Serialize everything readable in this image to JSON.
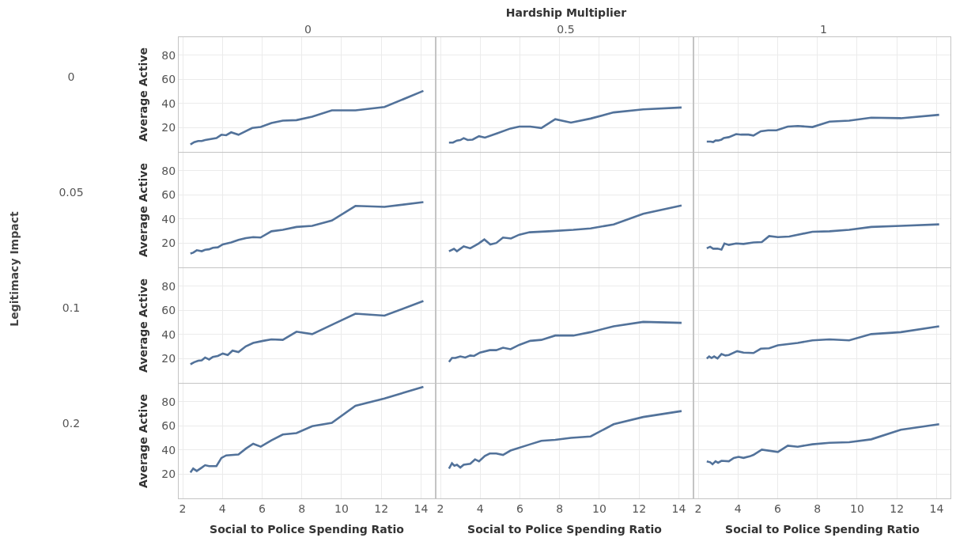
{
  "chart_data": [
    {
      "type": "other",
      "title": "Hardship Multiplier",
      "annotations": [
        "0",
        "0.5",
        "1"
      ]
    },
    {
      "type": "other",
      "title": "Legitimacy Impact",
      "annotations": [
        "0",
        "0.05",
        "0.1",
        "0.2"
      ]
    },
    {
      "type": "line",
      "ylabel": "Average Active",
      "xlim": [
        1.8,
        14.7
      ],
      "xticks": [
        2,
        4,
        6,
        8,
        10,
        12,
        14
      ],
      "ylim": [
        0,
        95
      ],
      "yticks": [
        20,
        40,
        60,
        80
      ],
      "grid": true,
      "tick_labels": "y",
      "series": [
        {
          "color": "#52729a",
          "x": [
            2.39,
            2.58,
            2.78,
            2.96,
            3.13,
            3.7,
            3.95,
            4.19,
            4.44,
            4.81,
            5.5,
            5.93,
            6.47,
            7.04,
            7.73,
            8.52,
            9.51,
            10.7,
            12.16,
            14.12
          ],
          "values": [
            6.1,
            8.1,
            9.0,
            9.0,
            9.8,
            11.4,
            14.2,
            13.8,
            16.2,
            14.2,
            19.8,
            20.6,
            23.9,
            25.9,
            26.3,
            29.1,
            34.4,
            34.4,
            37.2,
            50.5
          ]
        }
      ]
    },
    {
      "type": "line",
      "xlim": [
        1.8,
        14.7
      ],
      "xticks": [
        2,
        4,
        6,
        8,
        10,
        12,
        14
      ],
      "ylim": [
        0,
        95
      ],
      "yticks": [
        20,
        40,
        60,
        80
      ],
      "grid": true,
      "tick_labels": false,
      "series": [
        {
          "color": "#52729a",
          "x": [
            2.43,
            2.63,
            2.83,
            3.0,
            3.17,
            3.37,
            3.62,
            3.94,
            4.24,
            4.86,
            5.53,
            5.97,
            6.52,
            7.08,
            7.78,
            8.57,
            9.56,
            10.72,
            12.21,
            14.14
          ],
          "values": [
            7.7,
            7.7,
            9.4,
            9.8,
            11.4,
            9.8,
            10.2,
            13.0,
            11.8,
            15.4,
            19.4,
            21.0,
            21.0,
            19.8,
            27.1,
            24.3,
            27.6,
            32.7,
            35.2,
            36.8
          ]
        }
      ]
    },
    {
      "type": "line",
      "xlim": [
        1.8,
        14.7
      ],
      "xticks": [
        2,
        4,
        6,
        8,
        10,
        12,
        14
      ],
      "ylim": [
        0,
        95
      ],
      "yticks": [
        20,
        40,
        60,
        80
      ],
      "grid": true,
      "tick_labels": false,
      "series": [
        {
          "color": "#52729a",
          "x": [
            2.43,
            2.62,
            2.75,
            2.87,
            3.0,
            3.17,
            3.29,
            3.54,
            3.91,
            4.16,
            4.53,
            4.78,
            5.15,
            5.52,
            5.94,
            6.51,
            7.01,
            7.75,
            8.61,
            9.6,
            10.71,
            12.2,
            14.13
          ],
          "values": [
            8.5,
            8.5,
            8.1,
            9.4,
            9.4,
            10.2,
            11.5,
            12.2,
            14.7,
            14.3,
            14.3,
            13.5,
            17.1,
            17.9,
            17.9,
            21.0,
            21.5,
            20.6,
            25.1,
            25.9,
            28.3,
            27.9,
            30.7
          ]
        }
      ]
    },
    {
      "type": "line",
      "ylabel": "Average Active",
      "xlim": [
        1.8,
        14.7
      ],
      "xticks": [
        2,
        4,
        6,
        8,
        10,
        12,
        14
      ],
      "ylim": [
        0,
        95
      ],
      "yticks": [
        20,
        40,
        60,
        80
      ],
      "grid": true,
      "tick_labels": "y",
      "series": [
        {
          "color": "#52729a",
          "x": [
            2.39,
            2.53,
            2.71,
            2.96,
            3.13,
            3.33,
            3.52,
            3.77,
            4.02,
            4.44,
            4.81,
            5.18,
            5.55,
            5.92,
            6.47,
            7.04,
            7.73,
            8.52,
            9.51,
            10.7,
            12.16,
            14.12
          ],
          "values": [
            11.4,
            12.2,
            14.2,
            13.4,
            14.6,
            15.0,
            16.2,
            16.6,
            19.0,
            20.6,
            22.7,
            24.3,
            25.1,
            24.7,
            29.9,
            31.1,
            33.5,
            34.4,
            38.8,
            50.9,
            50.1,
            54.1
          ]
        }
      ]
    },
    {
      "type": "line",
      "xlim": [
        1.8,
        14.7
      ],
      "xticks": [
        2,
        4,
        6,
        8,
        10,
        12,
        14
      ],
      "ylim": [
        0,
        95
      ],
      "yticks": [
        20,
        40,
        60,
        80
      ],
      "grid": true,
      "tick_labels": false,
      "series": [
        {
          "color": "#52729a",
          "x": [
            2.43,
            2.68,
            2.83,
            3.17,
            3.5,
            3.92,
            4.21,
            4.51,
            4.81,
            5.15,
            5.55,
            5.97,
            6.49,
            7.46,
            8.69,
            9.56,
            10.72,
            12.21,
            14.14
          ],
          "values": [
            13.4,
            15.4,
            13.4,
            17.4,
            15.8,
            19.8,
            23.1,
            19.0,
            20.2,
            24.7,
            23.9,
            27.1,
            29.1,
            29.9,
            31.1,
            32.3,
            35.6,
            44.4,
            51.3
          ]
        }
      ]
    },
    {
      "type": "line",
      "xlim": [
        1.8,
        14.7
      ],
      "xticks": [
        2,
        4,
        6,
        8,
        10,
        12,
        14
      ],
      "ylim": [
        0,
        95
      ],
      "yticks": [
        20,
        40,
        60,
        80
      ],
      "grid": true,
      "tick_labels": false,
      "series": [
        {
          "color": "#52729a",
          "x": [
            2.43,
            2.6,
            2.75,
            2.97,
            3.17,
            3.32,
            3.54,
            3.91,
            4.28,
            4.78,
            5.2,
            5.57,
            6.01,
            6.58,
            7.75,
            8.61,
            9.6,
            10.71,
            12.2,
            14.13
          ],
          "values": [
            15.8,
            17.1,
            15.5,
            15.5,
            14.7,
            19.8,
            18.6,
            19.8,
            19.4,
            20.6,
            21.0,
            25.9,
            25.1,
            25.5,
            29.5,
            29.9,
            31.1,
            33.5,
            34.4,
            35.6
          ]
        }
      ]
    },
    {
      "type": "line",
      "ylabel": "Average Active",
      "xlim": [
        1.8,
        14.7
      ],
      "xticks": [
        2,
        4,
        6,
        8,
        10,
        12,
        14
      ],
      "ylim": [
        0,
        95
      ],
      "yticks": [
        20,
        40,
        60,
        80
      ],
      "grid": true,
      "tick_labels": "y",
      "series": [
        {
          "color": "#52729a",
          "x": [
            2.39,
            2.58,
            2.78,
            2.96,
            3.13,
            3.33,
            3.52,
            3.77,
            4.02,
            4.27,
            4.51,
            4.81,
            5.18,
            5.55,
            6.05,
            6.47,
            7.04,
            7.73,
            8.52,
            9.51,
            10.7,
            12.16,
            14.12
          ],
          "values": [
            15.4,
            17.1,
            18.3,
            18.7,
            21.0,
            19.4,
            21.5,
            22.3,
            24.3,
            23.1,
            26.7,
            25.5,
            30.3,
            33.1,
            34.8,
            36.0,
            35.6,
            42.4,
            40.4,
            48.1,
            57.3,
            55.7,
            67.8
          ]
        }
      ]
    },
    {
      "type": "line",
      "xlim": [
        1.8,
        14.7
      ],
      "xticks": [
        2,
        4,
        6,
        8,
        10,
        12,
        14
      ],
      "ylim": [
        0,
        95
      ],
      "yticks": [
        20,
        40,
        60,
        80
      ],
      "grid": true,
      "tick_labels": false,
      "series": [
        {
          "color": "#52729a",
          "x": [
            2.43,
            2.58,
            2.75,
            3.0,
            3.25,
            3.5,
            3.69,
            3.99,
            4.48,
            4.81,
            5.15,
            5.53,
            5.97,
            6.52,
            7.08,
            7.78,
            8.69,
            9.56,
            10.72,
            12.21,
            14.14
          ],
          "values": [
            17.4,
            20.6,
            20.6,
            21.9,
            21.0,
            22.7,
            22.3,
            25.1,
            27.1,
            27.1,
            29.1,
            27.9,
            31.5,
            34.8,
            35.6,
            39.2,
            39.2,
            42.0,
            46.9,
            50.5,
            49.7
          ]
        }
      ]
    },
    {
      "type": "line",
      "xlim": [
        1.8,
        14.7
      ],
      "xticks": [
        2,
        4,
        6,
        8,
        10,
        12,
        14
      ],
      "ylim": [
        0,
        95
      ],
      "yticks": [
        20,
        40,
        60,
        80
      ],
      "grid": true,
      "tick_labels": false,
      "series": [
        {
          "color": "#52729a",
          "x": [
            2.43,
            2.55,
            2.67,
            2.8,
            2.97,
            3.17,
            3.37,
            3.54,
            3.96,
            4.28,
            4.78,
            5.15,
            5.57,
            6.01,
            7.01,
            7.75,
            8.61,
            9.6,
            10.71,
            12.2,
            14.13
          ],
          "values": [
            20.2,
            21.9,
            20.6,
            21.9,
            20.2,
            23.9,
            22.7,
            23.1,
            26.3,
            25.1,
            24.7,
            28.3,
            28.7,
            31.1,
            33.1,
            35.2,
            36.0,
            35.2,
            40.4,
            42.0,
            46.9
          ]
        }
      ]
    },
    {
      "type": "line",
      "ylabel": "Average Active",
      "xlabel": "Social to Police Spending Ratio",
      "xlim": [
        1.8,
        14.7
      ],
      "xticks": [
        2,
        4,
        6,
        8,
        10,
        12,
        14
      ],
      "ylim": [
        0,
        95
      ],
      "yticks": [
        20,
        40,
        60,
        80
      ],
      "grid": true,
      "series": [
        {
          "color": "#52729a",
          "x": [
            2.39,
            2.53,
            2.71,
            2.96,
            3.13,
            3.33,
            3.7,
            3.95,
            4.19,
            4.81,
            5.18,
            5.55,
            5.93,
            6.47,
            7.04,
            7.73,
            8.52,
            9.51,
            10.7,
            12.16,
            14.12
          ],
          "values": [
            21.5,
            24.7,
            22.7,
            25.5,
            27.5,
            26.7,
            26.7,
            33.5,
            35.6,
            36.4,
            41.2,
            45.2,
            42.8,
            48.1,
            52.9,
            54.1,
            59.8,
            62.6,
            76.7,
            82.7,
            92.4
          ]
        }
      ]
    },
    {
      "type": "line",
      "xlabel": "Social to Police Spending Ratio",
      "xlim": [
        1.8,
        14.7
      ],
      "xticks": [
        2,
        4,
        6,
        8,
        10,
        12,
        14
      ],
      "ylim": [
        0,
        95
      ],
      "yticks": [
        20,
        40,
        60,
        80
      ],
      "grid": true,
      "tick_labels": "x",
      "series": [
        {
          "color": "#52729a",
          "x": [
            2.43,
            2.58,
            2.7,
            2.83,
            3.0,
            3.17,
            3.5,
            3.74,
            3.94,
            4.24,
            4.48,
            4.81,
            5.15,
            5.53,
            6.52,
            7.08,
            7.78,
            8.57,
            9.56,
            10.72,
            12.21,
            14.14
          ],
          "values": [
            24.7,
            29.1,
            27.1,
            27.9,
            25.5,
            27.9,
            28.7,
            32.3,
            30.7,
            35.2,
            37.2,
            37.2,
            36.0,
            39.6,
            44.8,
            47.7,
            48.5,
            50.1,
            51.3,
            61.4,
            67.4,
            72.3
          ]
        }
      ]
    },
    {
      "type": "line",
      "xlabel": "Social to Police Spending Ratio",
      "xlim": [
        1.8,
        14.7
      ],
      "xticks": [
        2,
        4,
        6,
        8,
        10,
        12,
        14
      ],
      "ylim": [
        0,
        95
      ],
      "yticks": [
        20,
        40,
        60,
        80
      ],
      "grid": true,
      "tick_labels": "x",
      "series": [
        {
          "color": "#52729a",
          "x": [
            2.43,
            2.6,
            2.72,
            2.87,
            3.0,
            3.17,
            3.54,
            3.79,
            4.03,
            4.28,
            4.6,
            4.78,
            5.2,
            6.01,
            6.51,
            7.01,
            7.75,
            8.61,
            9.6,
            10.71,
            12.2,
            14.13
          ],
          "values": [
            30.7,
            29.9,
            28.3,
            30.7,
            29.5,
            31.1,
            30.7,
            33.5,
            34.4,
            33.5,
            34.8,
            36.0,
            40.4,
            38.4,
            43.6,
            42.8,
            44.8,
            46.0,
            46.5,
            48.9,
            56.9,
            61.4
          ]
        }
      ]
    }
  ]
}
